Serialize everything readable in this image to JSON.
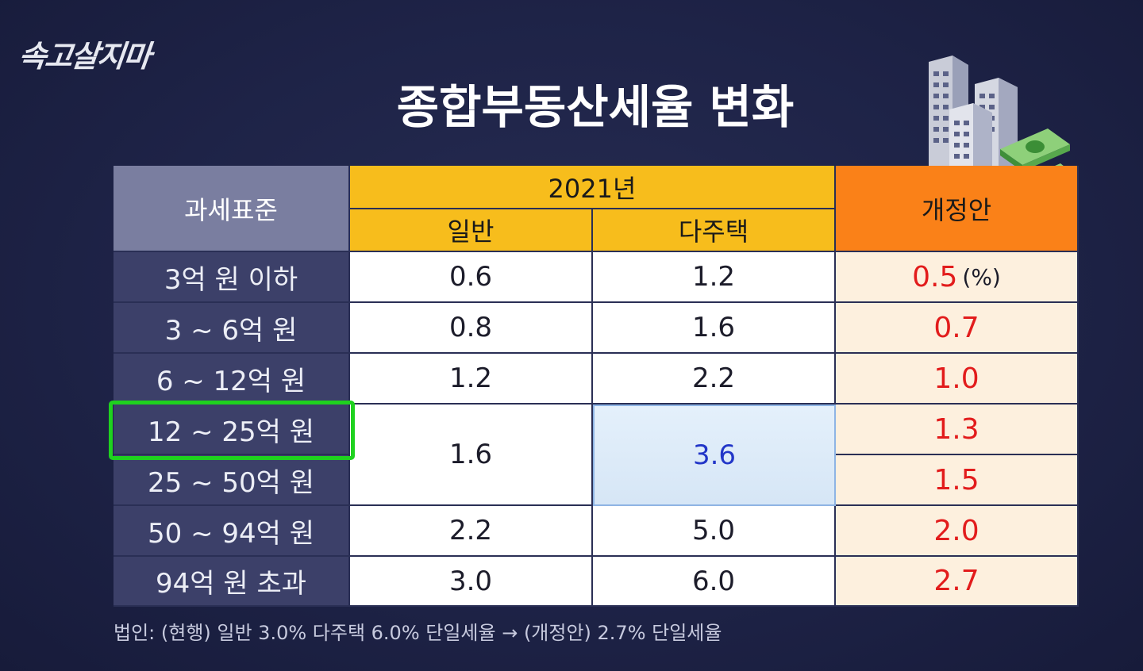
{
  "brand": {
    "logo_text": "속고살지마"
  },
  "title": "종합부동산세율 변화",
  "table": {
    "headers": {
      "standard": "과세표준",
      "year": "2021년",
      "general": "일반",
      "multi_home": "다주택",
      "revision": "개정안"
    },
    "unit": "(%)",
    "rows": [
      {
        "standard": "3억 원 이하",
        "general": "0.6",
        "multi": "1.2",
        "revision": "0.5"
      },
      {
        "standard": "3 ~ 6억 원",
        "general": "0.8",
        "multi": "1.6",
        "revision": "0.7"
      },
      {
        "standard": "6 ~ 12억 원",
        "general": "1.2",
        "multi": "2.2",
        "revision": "1.0"
      },
      {
        "standard": "12 ~ 25억 원",
        "general": "1.6",
        "multi": "3.6",
        "revision": "1.3"
      },
      {
        "standard": "25 ~ 50억 원",
        "revision": "1.5"
      },
      {
        "standard": "50 ~ 94억 원",
        "general": "2.2",
        "multi": "5.0",
        "revision": "2.0"
      },
      {
        "standard": "94억 원 초과",
        "general": "3.0",
        "multi": "6.0",
        "revision": "2.7"
      }
    ]
  },
  "footnote": "법인: (현행) 일반 3.0% 다주택 6.0% 단일세율 → (개정안) 2.7% 단일세율",
  "colors": {
    "background": "#1e2347",
    "header_year": "#f7bd1c",
    "header_revision": "#fa8118",
    "revision_text": "#e21c1c",
    "highlight_text": "#2236c8",
    "selection_box": "#1fd21f"
  },
  "icons": [
    "buildings-icon",
    "money-bundle-icon"
  ]
}
